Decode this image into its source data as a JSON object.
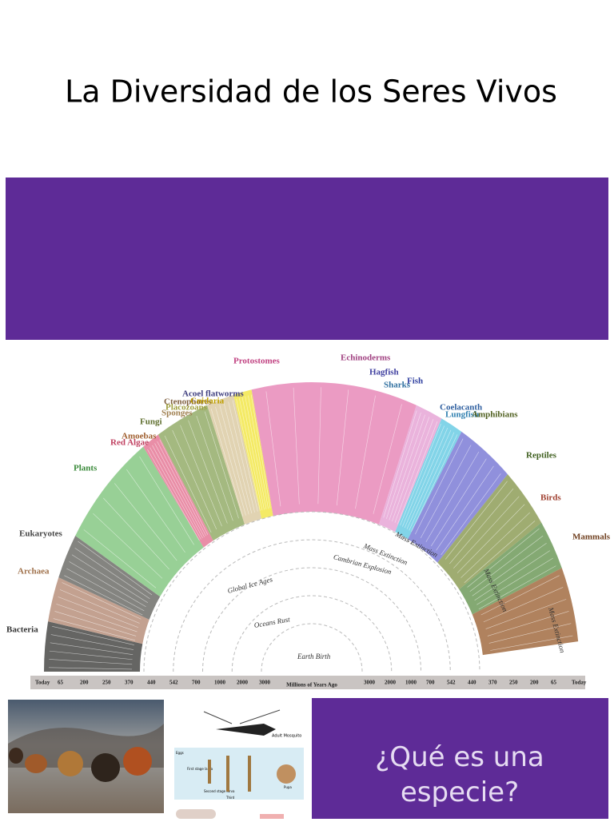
{
  "title": "La Diversidad de los Seres Vivos",
  "tree": {
    "groups": [
      "Bacteria",
      "Archaea",
      "Eukaryotes",
      "Plants",
      "Red Algae",
      "Amoebas",
      "Fungi",
      "Sponges",
      "Ctenophores",
      "Placozoans",
      "Cnidaria",
      "Acoel flatworms",
      "Protostomes",
      "Echinoderms",
      "Hagfish",
      "Sharks",
      "Fish",
      "Coelacanth",
      "Lungfish",
      "Amphibians",
      "Reptiles",
      "Birds",
      "Mammals"
    ],
    "events": [
      "Mass Extinction",
      "Mass Extinction",
      "Cambrian Explosion",
      "Global Ice Ages",
      "Oceans Rust",
      "Earth Birth",
      "Mass Extinction",
      "Mass Extinction"
    ],
    "timeline": {
      "left": [
        "Today",
        65,
        200,
        250,
        370,
        440,
        542,
        700,
        1000,
        2000,
        3000
      ],
      "center": "Millions of Years Ago",
      "right": [
        3000,
        2000,
        1000,
        700,
        542,
        440,
        370,
        250,
        200,
        65,
        "Today"
      ]
    }
  },
  "mosquito": {
    "labels": [
      "Adult Mosquito",
      "Eggs",
      "First stage larva",
      "Second stage larva",
      "Third",
      "Pupa"
    ]
  },
  "callout": "¿Qué es una especie?"
}
